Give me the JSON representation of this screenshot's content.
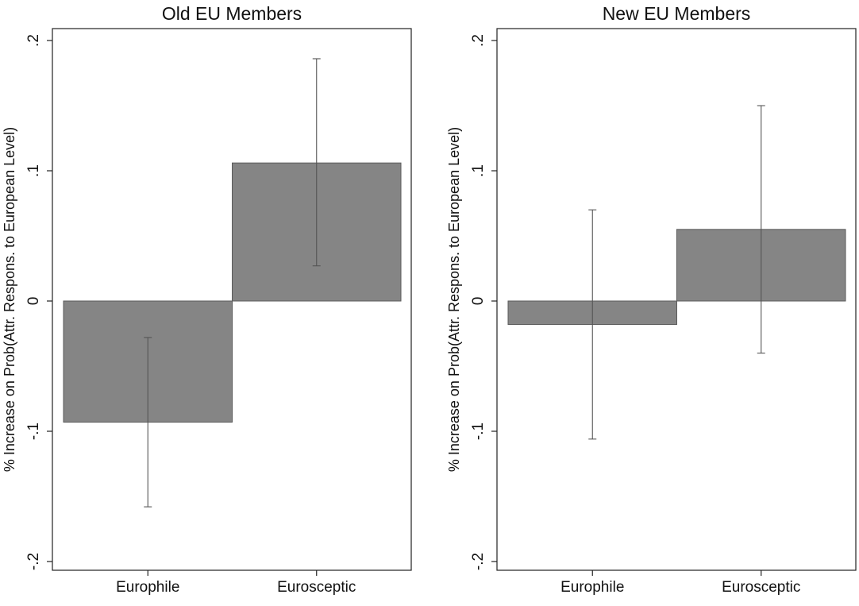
{
  "chart_data": [
    {
      "type": "bar",
      "title": "Old EU Members",
      "ylabel": "% Increase on Prob(Attr. Respons. to European Level)",
      "xlabel": "",
      "categories": [
        "Europhile",
        "Eurosceptic"
      ],
      "values": [
        -0.093,
        0.106
      ],
      "ci_lower": [
        -0.158,
        0.027
      ],
      "ci_upper": [
        -0.028,
        0.186
      ],
      "ylim": [
        -0.2,
        0.2
      ],
      "yticks": [
        -0.2,
        -0.1,
        0,
        0.1,
        0.2
      ],
      "ytick_labels": [
        "-.2",
        "-.1",
        "0",
        ".1",
        ".2"
      ],
      "grid": false,
      "legend": "none",
      "colors": {
        "bar": "#858585",
        "bar_edge": "#5a5a5a",
        "errorbar": "#555555",
        "axis": "#222222"
      }
    },
    {
      "type": "bar",
      "title": "New EU Members",
      "ylabel": "% Increase on Prob(Attr. Respons. to European Level)",
      "xlabel": "",
      "categories": [
        "Europhile",
        "Eurosceptic"
      ],
      "values": [
        -0.018,
        0.055
      ],
      "ci_lower": [
        -0.106,
        -0.04
      ],
      "ci_upper": [
        0.07,
        0.15
      ],
      "ylim": [
        -0.2,
        0.2
      ],
      "yticks": [
        -0.2,
        -0.1,
        0,
        0.1,
        0.2
      ],
      "ytick_labels": [
        "-.2",
        "-.1",
        "0",
        ".1",
        ".2"
      ],
      "grid": false,
      "legend": "none",
      "colors": {
        "bar": "#858585",
        "bar_edge": "#5a5a5a",
        "errorbar": "#555555",
        "axis": "#222222"
      }
    }
  ]
}
